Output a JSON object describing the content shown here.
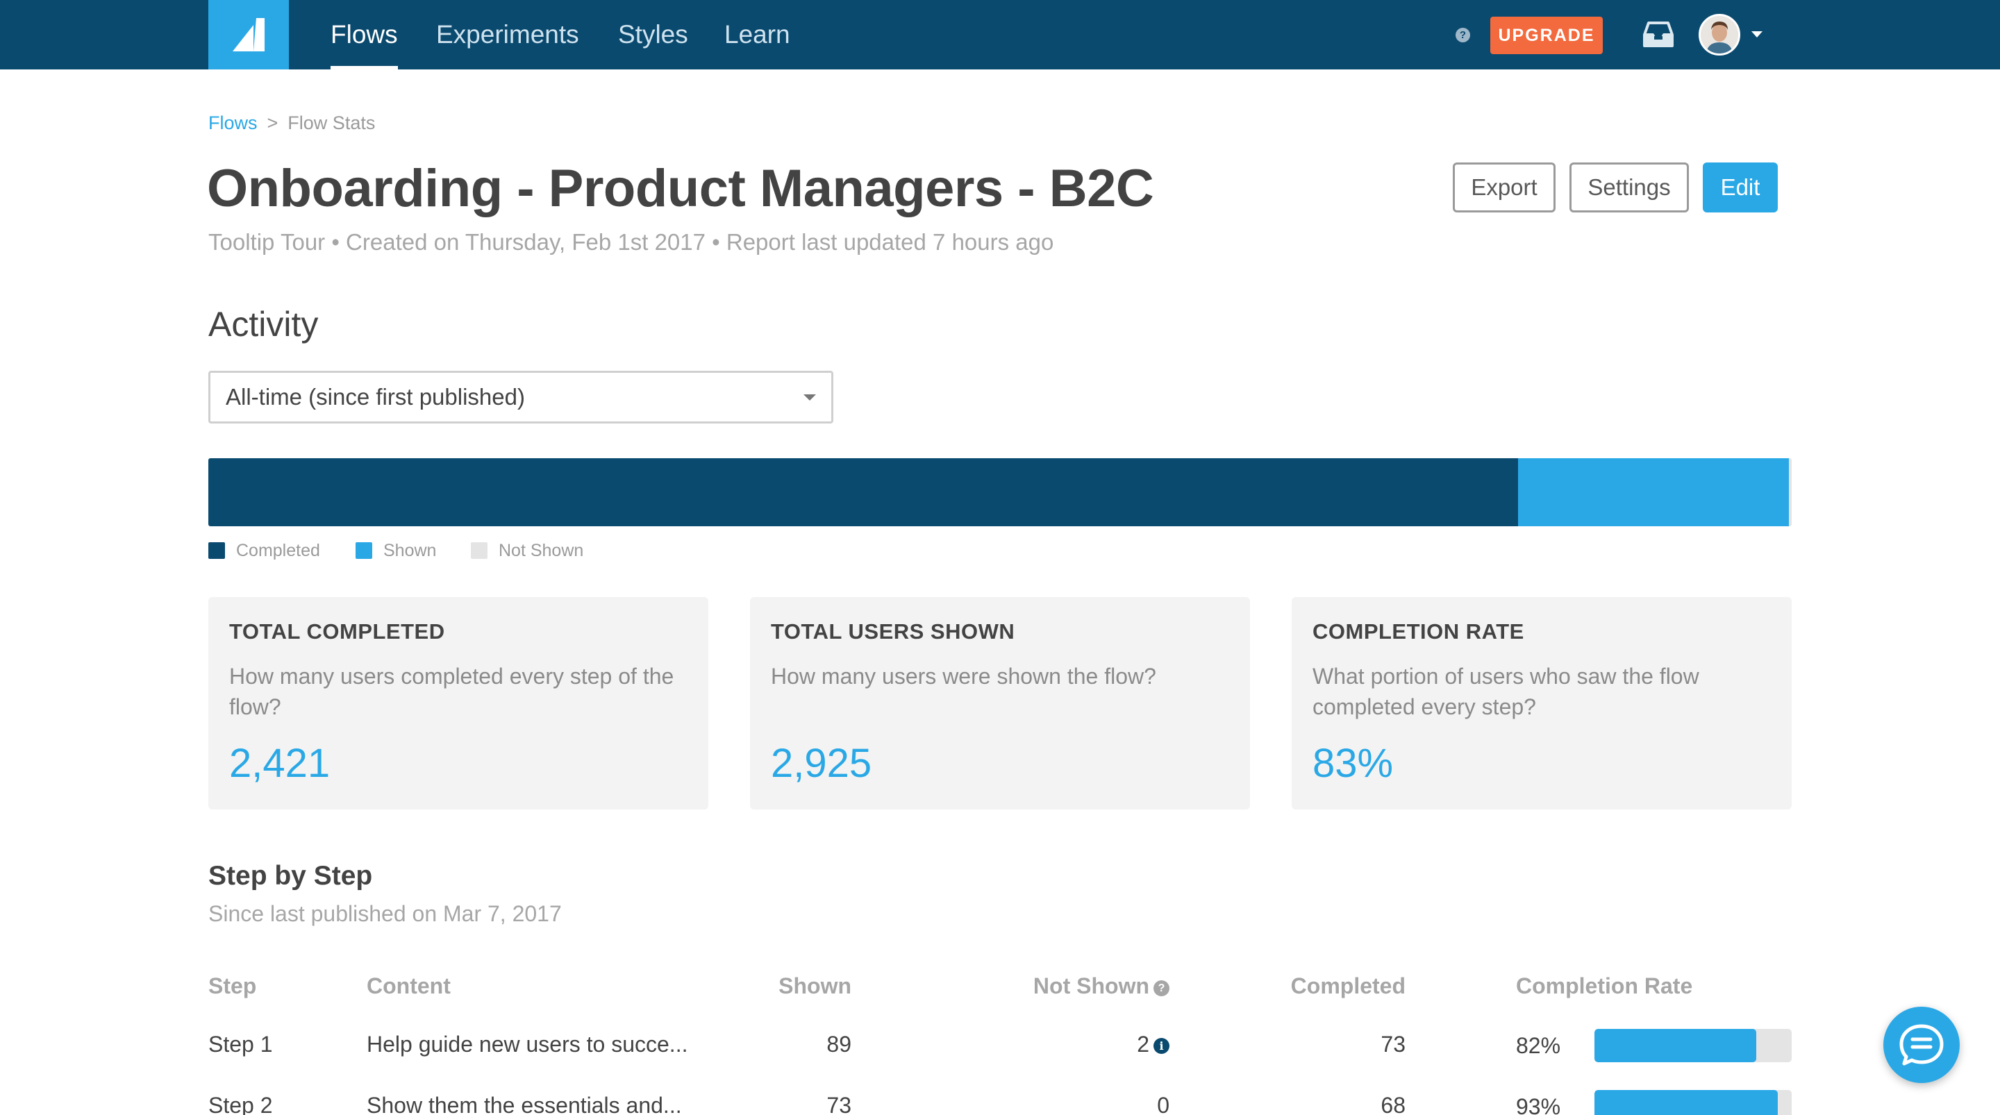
{
  "nav": {
    "items": [
      {
        "label": "Flows",
        "active": true
      },
      {
        "label": "Experiments",
        "active": false
      },
      {
        "label": "Styles",
        "active": false
      },
      {
        "label": "Learn",
        "active": false
      }
    ],
    "help_glyph": "?",
    "upgrade_label": "UPGRADE",
    "icons": [
      "logo-icon",
      "help-icon",
      "inbox-icon",
      "avatar",
      "chevron-down-icon"
    ]
  },
  "breadcrumb": {
    "parent": "Flows",
    "separator": ">",
    "current": "Flow Stats"
  },
  "header": {
    "title": "Onboarding - Product Managers - B2C",
    "subtitle": "Tooltip Tour •  Created on Thursday, Feb 1st 2017 • Report last updated 7 hours ago",
    "export_label": "Export",
    "settings_label": "Settings",
    "edit_label": "Edit"
  },
  "activity": {
    "title": "Activity",
    "range_selected": "All-time (since first published)",
    "bar": {
      "completed_fraction": 0.827,
      "shown_fraction": 0.173,
      "not_shown_fraction": 0.0
    },
    "legend": [
      {
        "label": "Completed",
        "color": "#0b4a6f"
      },
      {
        "label": "Shown",
        "color": "#2aa8e6"
      },
      {
        "label": "Not Shown",
        "color": "#e4e4e4"
      }
    ]
  },
  "cards": [
    {
      "title": "TOTAL COMPLETED",
      "description": "How many users completed every step of the flow?",
      "value": "2,421"
    },
    {
      "title": "TOTAL USERS SHOWN",
      "description": "How many users were shown the flow?",
      "value": "2,925"
    },
    {
      "title": "COMPLETION RATE",
      "description": "What portion of users who saw the flow completed every step?",
      "value": "83%"
    }
  ],
  "step_by_step": {
    "title": "Step by Step",
    "subtitle": "Since last published on Mar 7, 2017",
    "columns": [
      "Step",
      "Content",
      "Shown",
      "Not Shown",
      "Completed",
      "Completion Rate"
    ],
    "not_shown_help_glyph": "?",
    "info_glyph": "i",
    "rows": [
      {
        "step": "Step 1",
        "content": "Help guide new users to succe...",
        "shown": "89",
        "not_shown": "2",
        "completed": "73",
        "rate": "82%",
        "rate_value": 0.82,
        "has_info": true
      },
      {
        "step": "Step 2",
        "content": "Show them the essentials and...",
        "shown": "73",
        "not_shown": "0",
        "completed": "68",
        "rate": "93%",
        "rate_value": 0.93,
        "has_info": false
      }
    ]
  },
  "colors": {
    "nav_bg": "#0b4a6f",
    "accent": "#2aa8e6",
    "upgrade": "#f26a3d",
    "completed": "#0b4a6f",
    "shown": "#2aa8e6",
    "not_shown": "#e4e4e4"
  }
}
